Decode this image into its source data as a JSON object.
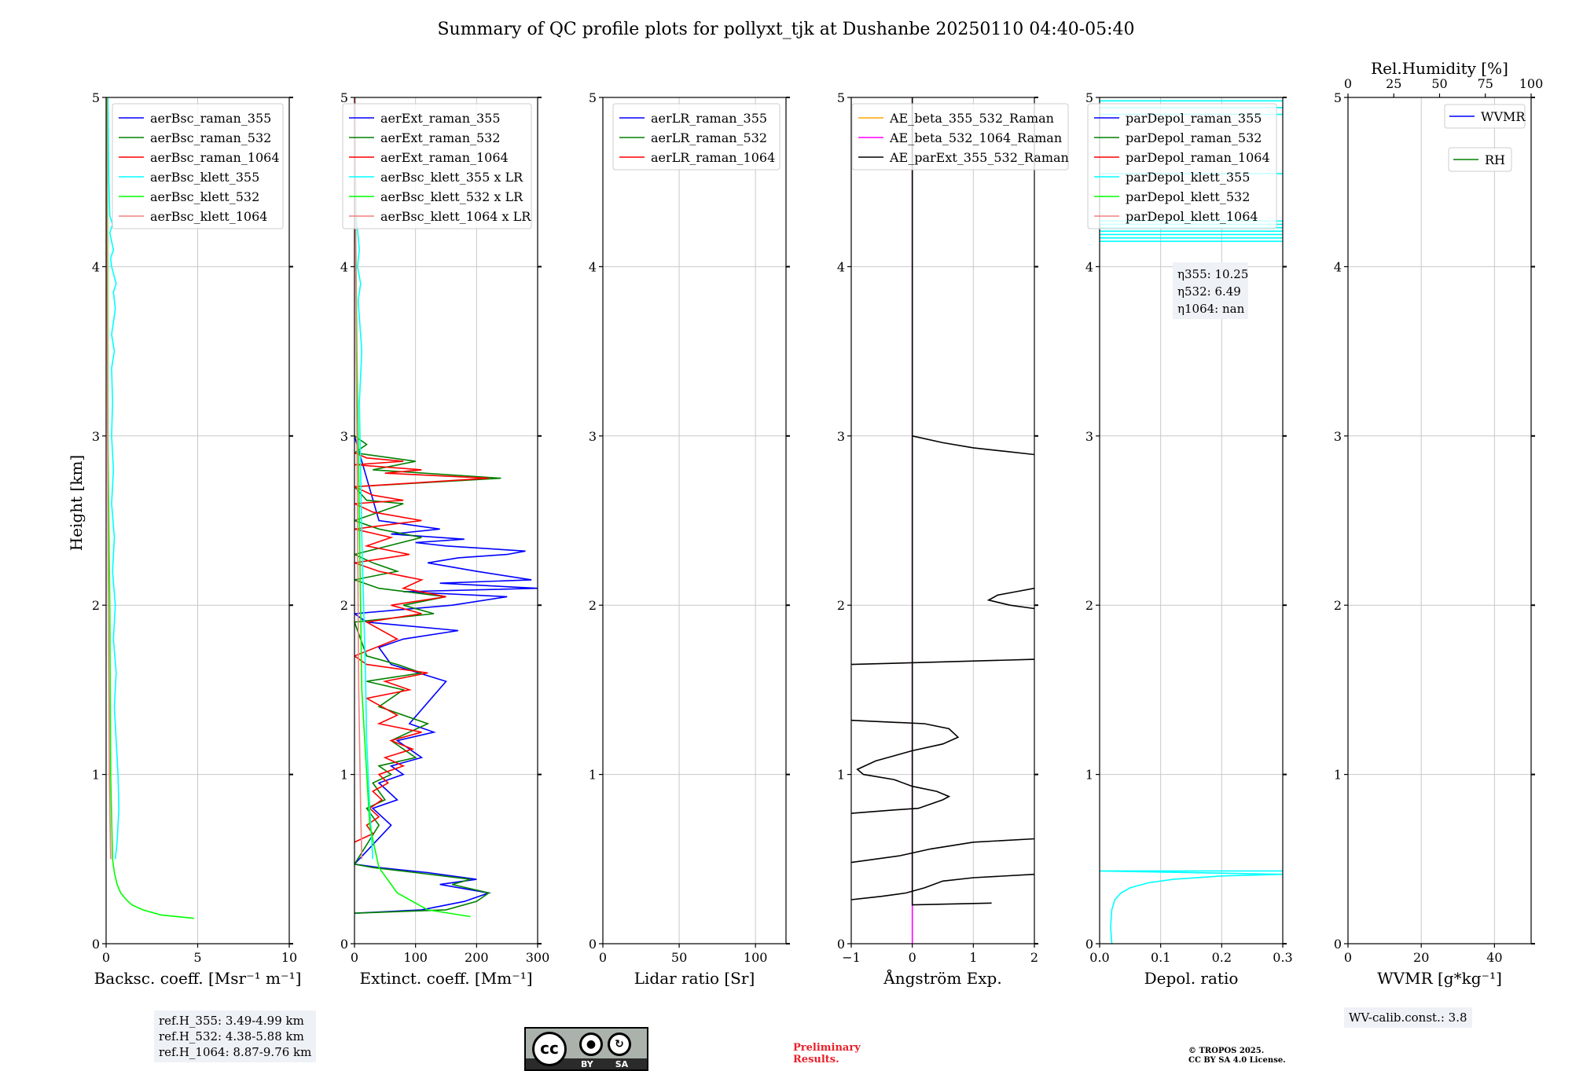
{
  "title": "Summary of QC profile plots for pollyxt_tjk at Dushanbe 20250110 04:40-05:40",
  "ylabel": "Height [km]",
  "ref_box": [
    "ref.H_355: 3.49-4.99 km",
    "ref.H_532: 4.38-5.88 km",
    "ref.H_1064: 8.87-9.76 km"
  ],
  "wv_calib": "WV-calib.const.: 3.8",
  "preliminary": [
    "Preliminary",
    "Results."
  ],
  "copyright": [
    "© TROPOS 2025.",
    "CC BY SA 4.0 License."
  ],
  "license_badge": {
    "cc": "cc",
    "by": "BY",
    "sa": "SA"
  },
  "colors": {
    "blue": "#0000ff",
    "green": "#008000",
    "red": "#ff0000",
    "cyan": "#00ffff",
    "lime": "#00ff00",
    "salmon": "#f08080",
    "orange": "#ffa500",
    "magenta": "#ff00ff",
    "black": "#000000"
  },
  "chart_data": [
    {
      "type": "line",
      "id": "bsc",
      "xlabel": "Backsc. coeff. [Msr⁻¹ m⁻¹]",
      "ylabel": "Height [km]",
      "xlim": [
        0,
        10
      ],
      "ylim": [
        0,
        5
      ],
      "xticks": [
        0,
        5,
        10
      ],
      "yticks": [
        0,
        1,
        2,
        3,
        4,
        5
      ],
      "legend_position": "top-right",
      "series": [
        {
          "name": "aerBsc_raman_355",
          "color": "#0000ff",
          "x": [],
          "y": []
        },
        {
          "name": "aerBsc_raman_532",
          "color": "#008000",
          "x": [],
          "y": []
        },
        {
          "name": "aerBsc_raman_1064",
          "color": "#ff0000",
          "x": [],
          "y": []
        },
        {
          "name": "aerBsc_klett_355",
          "color": "#00ffff",
          "x": [
            0.5,
            0.6,
            0.7,
            0.65,
            0.55,
            0.45,
            0.55,
            0.4,
            0.5,
            0.35,
            0.45,
            0.3,
            0.4,
            0.3,
            0.35,
            0.3,
            0.45,
            0.3,
            0.5,
            0.4,
            0.55,
            0.3,
            0.25,
            0.4,
            0.2,
            0.35,
            0.2,
            0.15,
            0.1
          ],
          "y": [
            0.5,
            0.6,
            0.8,
            1.0,
            1.2,
            1.4,
            1.6,
            1.8,
            2.0,
            2.2,
            2.4,
            2.6,
            2.8,
            3.0,
            3.2,
            3.4,
            3.5,
            3.6,
            3.75,
            3.85,
            3.9,
            4.0,
            4.05,
            4.1,
            4.2,
            4.25,
            4.3,
            4.5,
            5.0
          ]
        },
        {
          "name": "aerBsc_klett_532",
          "color": "#00ff00",
          "x": [
            4.8,
            3.0,
            2.0,
            1.4,
            1.1,
            0.8,
            0.6,
            0.45,
            0.35,
            0.25,
            0.2,
            0.1,
            0.08,
            0.05
          ],
          "y": [
            0.15,
            0.17,
            0.2,
            0.23,
            0.26,
            0.3,
            0.35,
            0.42,
            0.5,
            1.0,
            2.0,
            3.0,
            4.0,
            5.0
          ]
        },
        {
          "name": "aerBsc_klett_1064",
          "color": "#f08080",
          "x": [
            0.25,
            0.22,
            0.18,
            0.12,
            0.08,
            0.05,
            0.03
          ],
          "y": [
            0.5,
            0.7,
            1.0,
            2.0,
            3.0,
            4.0,
            5.0
          ]
        }
      ]
    },
    {
      "type": "line",
      "id": "ext",
      "xlabel": "Extinct. coeff. [Mm⁻¹]",
      "xlim": [
        0,
        300
      ],
      "ylim": [
        0,
        5
      ],
      "xticks": [
        0,
        100,
        200,
        300
      ],
      "yticks": [
        0,
        1,
        2,
        3,
        4,
        5
      ],
      "legend_position": "top-right",
      "series": [
        {
          "name": "aerExt_raman_355",
          "color": "#0000ff",
          "x": [
            0,
            110,
            180,
            220,
            140,
            200,
            120,
            40,
            0,
            60,
            30,
            70,
            40,
            80,
            60,
            110,
            70,
            130,
            90,
            150,
            60,
            40,
            80,
            170,
            20,
            0,
            160,
            250,
            80,
            300,
            140,
            290,
            200,
            120,
            170,
            250,
            280,
            150,
            100,
            180,
            60,
            140,
            40,
            0
          ],
          "y": [
            0.18,
            0.2,
            0.25,
            0.3,
            0.35,
            0.38,
            0.42,
            0.45,
            0.47,
            0.7,
            0.8,
            0.85,
            0.95,
            1.0,
            1.05,
            1.1,
            1.2,
            1.25,
            1.3,
            1.55,
            1.65,
            1.75,
            1.8,
            1.85,
            1.9,
            1.95,
            2.0,
            2.05,
            2.08,
            2.1,
            2.13,
            2.15,
            2.2,
            2.25,
            2.28,
            2.3,
            2.32,
            2.35,
            2.37,
            2.39,
            2.42,
            2.45,
            2.5,
            3.0
          ]
        },
        {
          "name": "aerExt_raman_532",
          "color": "#008000",
          "x": [
            0,
            150,
            200,
            220,
            160,
            190,
            100,
            30,
            0,
            40,
            20,
            50,
            30,
            60,
            40,
            100,
            60,
            120,
            40,
            80,
            20,
            110,
            70,
            20,
            0,
            130,
            80,
            150,
            40,
            0,
            70,
            30,
            0,
            110,
            40,
            0,
            80,
            20,
            0,
            240,
            30,
            100,
            0,
            20,
            0
          ],
          "y": [
            0.18,
            0.2,
            0.25,
            0.3,
            0.35,
            0.38,
            0.42,
            0.45,
            0.47,
            0.7,
            0.8,
            0.85,
            0.95,
            1.0,
            1.05,
            1.1,
            1.2,
            1.3,
            1.4,
            1.5,
            1.55,
            1.6,
            1.65,
            1.7,
            1.9,
            1.95,
            2.0,
            2.05,
            2.1,
            2.15,
            2.2,
            2.25,
            2.3,
            2.4,
            2.45,
            2.5,
            2.6,
            2.62,
            2.7,
            2.75,
            2.8,
            2.85,
            2.9,
            2.95,
            3.0
          ]
        },
        {
          "name": "aerExt_raman_1064",
          "color": "#ff0000",
          "x": [
            0,
            30,
            20,
            40,
            25,
            45,
            30,
            55,
            40,
            80,
            50,
            95,
            60,
            110,
            40,
            70,
            20,
            90,
            50,
            120,
            20,
            0,
            70,
            20,
            110,
            60,
            150,
            80,
            110,
            40,
            0,
            90,
            20,
            60,
            0,
            110,
            30,
            0,
            80,
            30,
            0,
            220,
            50,
            110,
            0,
            80,
            20,
            0
          ],
          "y": [
            0.6,
            0.65,
            0.7,
            0.75,
            0.8,
            0.85,
            0.9,
            0.95,
            1.0,
            1.05,
            1.1,
            1.15,
            1.2,
            1.25,
            1.3,
            1.35,
            1.45,
            1.5,
            1.55,
            1.6,
            1.65,
            1.7,
            1.8,
            1.9,
            1.95,
            2.0,
            2.05,
            2.1,
            2.15,
            2.2,
            2.25,
            2.3,
            2.35,
            2.4,
            2.45,
            2.5,
            2.55,
            2.6,
            2.62,
            2.65,
            2.7,
            2.75,
            2.78,
            2.8,
            2.83,
            2.85,
            2.87,
            2.9
          ]
        },
        {
          "name": "aerBsc_klett_355 x LR",
          "color": "#00ffff",
          "x": [
            30,
            25,
            20,
            18,
            15,
            12,
            10,
            8,
            12,
            6,
            10,
            5,
            8,
            3,
            0
          ],
          "y": [
            0.5,
            0.8,
            1.2,
            1.6,
            2.0,
            2.4,
            2.8,
            3.2,
            3.5,
            3.8,
            3.9,
            4.0,
            4.1,
            4.3,
            5.0
          ]
        },
        {
          "name": "aerBsc_klett_532 x LR",
          "color": "#00ff00",
          "x": [
            190,
            120,
            70,
            40,
            25,
            12,
            8,
            4,
            2,
            0
          ],
          "y": [
            0.16,
            0.2,
            0.3,
            0.45,
            0.7,
            1.5,
            2.5,
            3.5,
            4.2,
            5.0
          ]
        },
        {
          "name": "aerBsc_klett_1064 x LR",
          "color": "#f08080",
          "x": [
            12,
            10,
            7,
            5,
            3,
            1
          ],
          "y": [
            0.5,
            0.8,
            1.5,
            2.5,
            3.5,
            5.0
          ]
        }
      ]
    },
    {
      "type": "line",
      "id": "lr",
      "xlabel": "Lidar ratio [Sr]",
      "xlim": [
        0,
        120
      ],
      "ylim": [
        0,
        5
      ],
      "xticks": [
        0,
        50,
        100
      ],
      "yticks": [
        0,
        1,
        2,
        3,
        4,
        5
      ],
      "legend_position": "top-right",
      "series": [
        {
          "name": "aerLR_raman_355",
          "color": "#0000ff",
          "x": [],
          "y": []
        },
        {
          "name": "aerLR_raman_532",
          "color": "#008000",
          "x": [],
          "y": []
        },
        {
          "name": "aerLR_raman_1064",
          "color": "#ff0000",
          "x": [],
          "y": []
        }
      ]
    },
    {
      "type": "line",
      "id": "ae",
      "xlabel": "Ångström Exp.",
      "xlim": [
        -1,
        2
      ],
      "ylim": [
        0,
        5
      ],
      "xticks": [
        -1,
        0,
        1,
        2
      ],
      "xticklabels": [
        "−1",
        "0",
        "1",
        "2"
      ],
      "yticks": [
        0,
        1,
        2,
        3,
        4,
        5
      ],
      "legend_position": "top-left",
      "series": [
        {
          "name": "AE_beta_355_532_Raman",
          "color": "#ffa500",
          "x": [],
          "y": []
        },
        {
          "name": "AE_beta_532_1064_Raman",
          "color": "#ff00ff",
          "x": [
            0,
            0
          ],
          "y": [
            0,
            5
          ]
        },
        {
          "name": "AE_parExt_355_532_Raman",
          "color": "#000000",
          "segments": [
            {
              "x": [
                1.3,
                0.0,
                0.0
              ],
              "y": [
                0.24,
                0.23,
                5.0
              ]
            },
            {
              "x": [
                -1.0,
                -0.5,
                -0.1,
                0.2,
                0.5,
                1.0,
                2.0
              ],
              "y": [
                0.26,
                0.28,
                0.3,
                0.33,
                0.37,
                0.39,
                0.41
              ]
            },
            {
              "x": [
                -1.0,
                -0.2,
                0.3,
                1.0,
                2.0
              ],
              "y": [
                0.48,
                0.52,
                0.56,
                0.6,
                0.62
              ]
            },
            {
              "x": [
                -1.0,
                -0.3,
                0.1,
                0.5,
                0.6,
                0.4,
                0.0,
                -0.3,
                -0.8,
                -0.9,
                -0.6,
                0.0,
                0.5,
                0.75,
                0.6,
                0.2,
                -1.0
              ],
              "y": [
                0.77,
                0.79,
                0.8,
                0.85,
                0.87,
                0.9,
                0.93,
                0.97,
                1.0,
                1.03,
                1.08,
                1.14,
                1.18,
                1.22,
                1.27,
                1.3,
                1.32
              ]
            },
            {
              "x": [
                -1.0,
                2.0
              ],
              "y": [
                1.65,
                1.68
              ]
            },
            {
              "x": [
                2.0,
                1.6,
                1.25,
                1.4,
                1.7,
                2.0
              ],
              "y": [
                1.98,
                2.0,
                2.03,
                2.06,
                2.08,
                2.1
              ]
            },
            {
              "x": [
                0.0,
                0.5,
                1.0,
                1.5,
                2.0
              ],
              "y": [
                3.0,
                2.96,
                2.93,
                2.91,
                2.89
              ]
            }
          ]
        }
      ]
    },
    {
      "type": "line",
      "id": "depol",
      "xlabel": "Depol. ratio",
      "xlim": [
        0,
        0.3
      ],
      "ylim": [
        0,
        5
      ],
      "xticks": [
        0,
        0.1,
        0.2,
        0.3
      ],
      "xticklabels": [
        "0.0",
        "0.1",
        "0.2",
        "0.3"
      ],
      "yticks": [
        0,
        1,
        2,
        3,
        4,
        5
      ],
      "legend_position": "top-right",
      "annotation": [
        "η355: 10.25",
        "η532: 6.49",
        "η1064: nan"
      ],
      "series": [
        {
          "name": "parDepol_raman_355",
          "color": "#0000ff",
          "x": [],
          "y": []
        },
        {
          "name": "parDepol_raman_532",
          "color": "#008000",
          "x": [],
          "y": []
        },
        {
          "name": "parDepol_raman_1064",
          "color": "#ff0000",
          "x": [],
          "y": []
        },
        {
          "name": "parDepol_klett_355",
          "color": "#00ffff",
          "x": [
            0.02,
            0.018,
            0.02,
            0.025,
            0.035,
            0.05,
            0.08,
            0.12,
            0.2,
            0.3,
            0.0,
            0.3
          ],
          "y": [
            0.0,
            0.1,
            0.2,
            0.26,
            0.3,
            0.33,
            0.36,
            0.38,
            0.4,
            0.41,
            0.43,
            0.43
          ],
          "hlines": [
            4.15,
            4.17,
            4.19,
            4.21,
            4.23,
            4.25,
            4.27,
            4.55,
            4.9,
            4.94,
            4.98
          ]
        },
        {
          "name": "parDepol_klett_532",
          "color": "#00ff00",
          "x": [],
          "y": []
        },
        {
          "name": "parDepol_klett_1064",
          "color": "#f08080",
          "x": [],
          "y": []
        }
      ]
    },
    {
      "type": "line",
      "id": "wv",
      "xlabel": "WVMR [g*kg⁻¹]",
      "x2label": "Rel.Humidity [%]",
      "xlim": [
        0,
        50
      ],
      "x2lim": [
        0,
        100
      ],
      "ylim": [
        0,
        5
      ],
      "xticks": [
        0,
        20,
        40
      ],
      "x2ticks": [
        0,
        25,
        50,
        75,
        100
      ],
      "yticks": [
        0,
        1,
        2,
        3,
        4,
        5
      ],
      "series": [
        {
          "name": "WVMR",
          "color": "#0000ff",
          "x": [],
          "y": []
        },
        {
          "name": "RH",
          "color": "#008000",
          "x": [],
          "y": []
        }
      ]
    }
  ]
}
